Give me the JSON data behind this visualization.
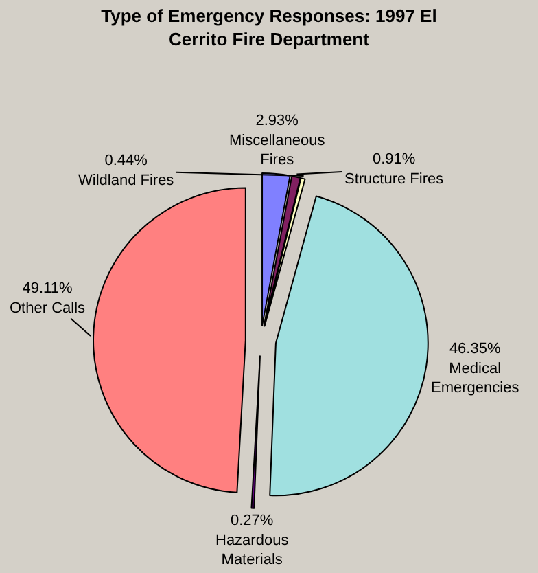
{
  "chart_data": {
    "type": "pie",
    "title": "Type of Emergency Responses: 1997 El Cerrito Fire Department",
    "categories": [
      "Miscellaneous Fires",
      "Structure Fires",
      "Wildland Fires",
      "Medical Emergencies",
      "Hazardous Materials",
      "Other Calls"
    ],
    "values": [
      2.93,
      0.91,
      0.44,
      46.35,
      0.27,
      49.11
    ],
    "colors": [
      "#8080ff",
      "#802060",
      "#ffffc0",
      "#a0e0e0",
      "#600080",
      "#ff8080"
    ],
    "value_labels": [
      "2.93%",
      "0.91%",
      "0.44%",
      "46.35%",
      "0.27%",
      "49.11%"
    ],
    "legend": false
  }
}
